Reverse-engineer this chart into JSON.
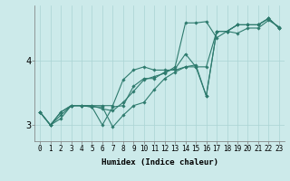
{
  "xlabel": "Humidex (Indice chaleur)",
  "ylabel": "",
  "bg_color": "#cceaea",
  "line_color": "#2e7b6e",
  "xlim": [
    -0.5,
    23.5
  ],
  "ylim": [
    2.75,
    4.85
  ],
  "yticks": [
    3,
    4
  ],
  "xticks": [
    0,
    1,
    2,
    3,
    4,
    5,
    6,
    7,
    8,
    9,
    10,
    11,
    12,
    13,
    14,
    15,
    16,
    17,
    18,
    19,
    20,
    21,
    22,
    23
  ],
  "series": [
    [
      3.2,
      3.0,
      3.1,
      3.3,
      3.3,
      3.3,
      3.25,
      3.22,
      3.35,
      3.52,
      3.7,
      3.75,
      3.8,
      3.9,
      4.58,
      4.58,
      4.6,
      4.35,
      4.45,
      4.42,
      4.5,
      4.5,
      4.62,
      4.52
    ],
    [
      3.2,
      3.0,
      3.15,
      3.3,
      3.3,
      3.3,
      3.3,
      3.3,
      3.7,
      3.85,
      3.9,
      3.85,
      3.85,
      3.85,
      3.9,
      3.9,
      3.9,
      4.45,
      4.45,
      4.55,
      4.55,
      4.55,
      4.65,
      4.5
    ],
    [
      3.2,
      3.0,
      3.2,
      3.3,
      3.3,
      3.28,
      3.0,
      3.28,
      3.3,
      3.6,
      3.72,
      3.72,
      3.82,
      3.87,
      4.1,
      3.9,
      3.45,
      4.45,
      4.45,
      4.55,
      4.55,
      4.55,
      4.65,
      4.5
    ],
    [
      3.2,
      3.0,
      3.2,
      3.3,
      3.3,
      3.28,
      3.28,
      2.97,
      3.15,
      3.3,
      3.35,
      3.55,
      3.72,
      3.82,
      3.9,
      3.93,
      3.45,
      4.45,
      4.45,
      4.55,
      4.55,
      4.55,
      4.65,
      4.5
    ]
  ],
  "grid_color": "#aad4d4",
  "tick_fontsize": 5.5,
  "xlabel_fontsize": 6.5
}
